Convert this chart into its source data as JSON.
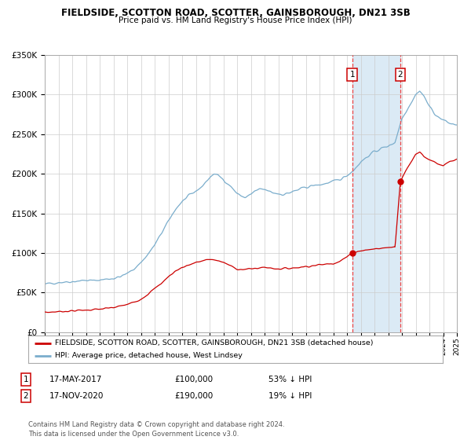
{
  "title": "FIELDSIDE, SCOTTON ROAD, SCOTTER, GAINSBOROUGH, DN21 3SB",
  "subtitle": "Price paid vs. HM Land Registry's House Price Index (HPI)",
  "legend_label_red": "FIELDSIDE, SCOTTON ROAD, SCOTTER, GAINSBOROUGH, DN21 3SB (detached house)",
  "legend_label_blue": "HPI: Average price, detached house, West Lindsey",
  "transaction1_label": "17-MAY-2017",
  "transaction1_value": "£100,000",
  "transaction1_pct": "53% ↓ HPI",
  "transaction2_label": "17-NOV-2020",
  "transaction2_value": "£190,000",
  "transaction2_pct": "19% ↓ HPI",
  "footnote": "Contains HM Land Registry data © Crown copyright and database right 2024.\nThis data is licensed under the Open Government Licence v3.0.",
  "red_color": "#cc0000",
  "blue_color": "#7aadcc",
  "highlight_color": "#dbeaf5",
  "vline_color": "#ee4444",
  "grid_color": "#cccccc",
  "background_color": "#ffffff",
  "ylim": [
    0,
    350000
  ],
  "yticks": [
    0,
    50000,
    100000,
    150000,
    200000,
    250000,
    300000,
    350000
  ],
  "start_year": 1995,
  "end_year": 2025,
  "transaction1_year": 2017.38,
  "transaction2_year": 2020.88,
  "transaction1_price": 100000,
  "transaction2_price": 190000,
  "blue_years": [
    1995.0,
    1995.1,
    1995.2,
    1995.5,
    1996.0,
    1996.5,
    1997.0,
    1997.5,
    1998.0,
    1998.5,
    1999.0,
    1999.5,
    2000.0,
    2000.5,
    2001.0,
    2001.5,
    2002.0,
    2002.5,
    2003.0,
    2003.5,
    2004.0,
    2004.5,
    2005.0,
    2005.5,
    2006.0,
    2006.5,
    2007.0,
    2007.3,
    2007.6,
    2008.0,
    2008.3,
    2008.6,
    2009.0,
    2009.3,
    2009.6,
    2010.0,
    2010.3,
    2010.6,
    2011.0,
    2011.3,
    2011.6,
    2012.0,
    2012.3,
    2012.6,
    2013.0,
    2013.5,
    2014.0,
    2014.5,
    2015.0,
    2015.5,
    2016.0,
    2016.5,
    2017.0,
    2017.5,
    2018.0,
    2018.5,
    2019.0,
    2019.5,
    2020.0,
    2020.5,
    2021.0,
    2021.5,
    2022.0,
    2022.3,
    2022.6,
    2023.0,
    2023.3,
    2023.6,
    2024.0,
    2024.3,
    2024.6,
    2025.0
  ],
  "blue_vals": [
    60000,
    60500,
    61000,
    62000,
    63000,
    63500,
    64000,
    65000,
    65500,
    65000,
    66000,
    67000,
    68000,
    70000,
    74000,
    80000,
    88000,
    98000,
    110000,
    125000,
    140000,
    155000,
    165000,
    172000,
    178000,
    185000,
    195000,
    200000,
    198000,
    193000,
    188000,
    183000,
    175000,
    172000,
    170000,
    174000,
    178000,
    180000,
    180000,
    178000,
    176000,
    175000,
    174000,
    175000,
    177000,
    180000,
    183000,
    185000,
    186000,
    188000,
    190000,
    193000,
    198000,
    205000,
    215000,
    222000,
    228000,
    232000,
    235000,
    240000,
    270000,
    285000,
    300000,
    305000,
    298000,
    285000,
    278000,
    272000,
    268000,
    265000,
    263000,
    262000
  ],
  "red_years": [
    1995.0,
    1995.5,
    1996.0,
    1996.5,
    1997.0,
    1997.5,
    1998.0,
    1998.5,
    1999.0,
    1999.5,
    2000.0,
    2000.5,
    2001.0,
    2001.5,
    2002.0,
    2002.5,
    2003.0,
    2003.5,
    2004.0,
    2004.5,
    2005.0,
    2005.5,
    2006.0,
    2006.5,
    2007.0,
    2007.5,
    2008.0,
    2008.5,
    2009.0,
    2009.5,
    2010.0,
    2010.5,
    2011.0,
    2011.5,
    2012.0,
    2012.5,
    2013.0,
    2013.5,
    2014.0,
    2014.5,
    2015.0,
    2015.5,
    2016.0,
    2016.5,
    2017.0,
    2017.38,
    2017.5,
    2018.0,
    2018.5,
    2019.0,
    2019.5,
    2020.0,
    2020.5,
    2020.88,
    2021.0,
    2021.5,
    2022.0,
    2022.3,
    2022.6,
    2023.0,
    2023.3,
    2023.6,
    2024.0,
    2024.5,
    2025.0
  ],
  "red_vals": [
    25000,
    25500,
    26000,
    26500,
    27000,
    27500,
    28000,
    28500,
    29000,
    30000,
    31000,
    33000,
    35000,
    38000,
    42000,
    48000,
    55000,
    62000,
    70000,
    77000,
    82000,
    85000,
    88000,
    90000,
    92000,
    91000,
    88000,
    84000,
    80000,
    79000,
    80000,
    81000,
    82000,
    81000,
    80000,
    80500,
    81000,
    82000,
    83000,
    84000,
    85000,
    86000,
    87000,
    90000,
    95000,
    100000,
    101000,
    103000,
    104000,
    105000,
    106000,
    107000,
    108000,
    190000,
    195000,
    210000,
    225000,
    228000,
    222000,
    218000,
    215000,
    212000,
    210000,
    215000,
    218000
  ]
}
